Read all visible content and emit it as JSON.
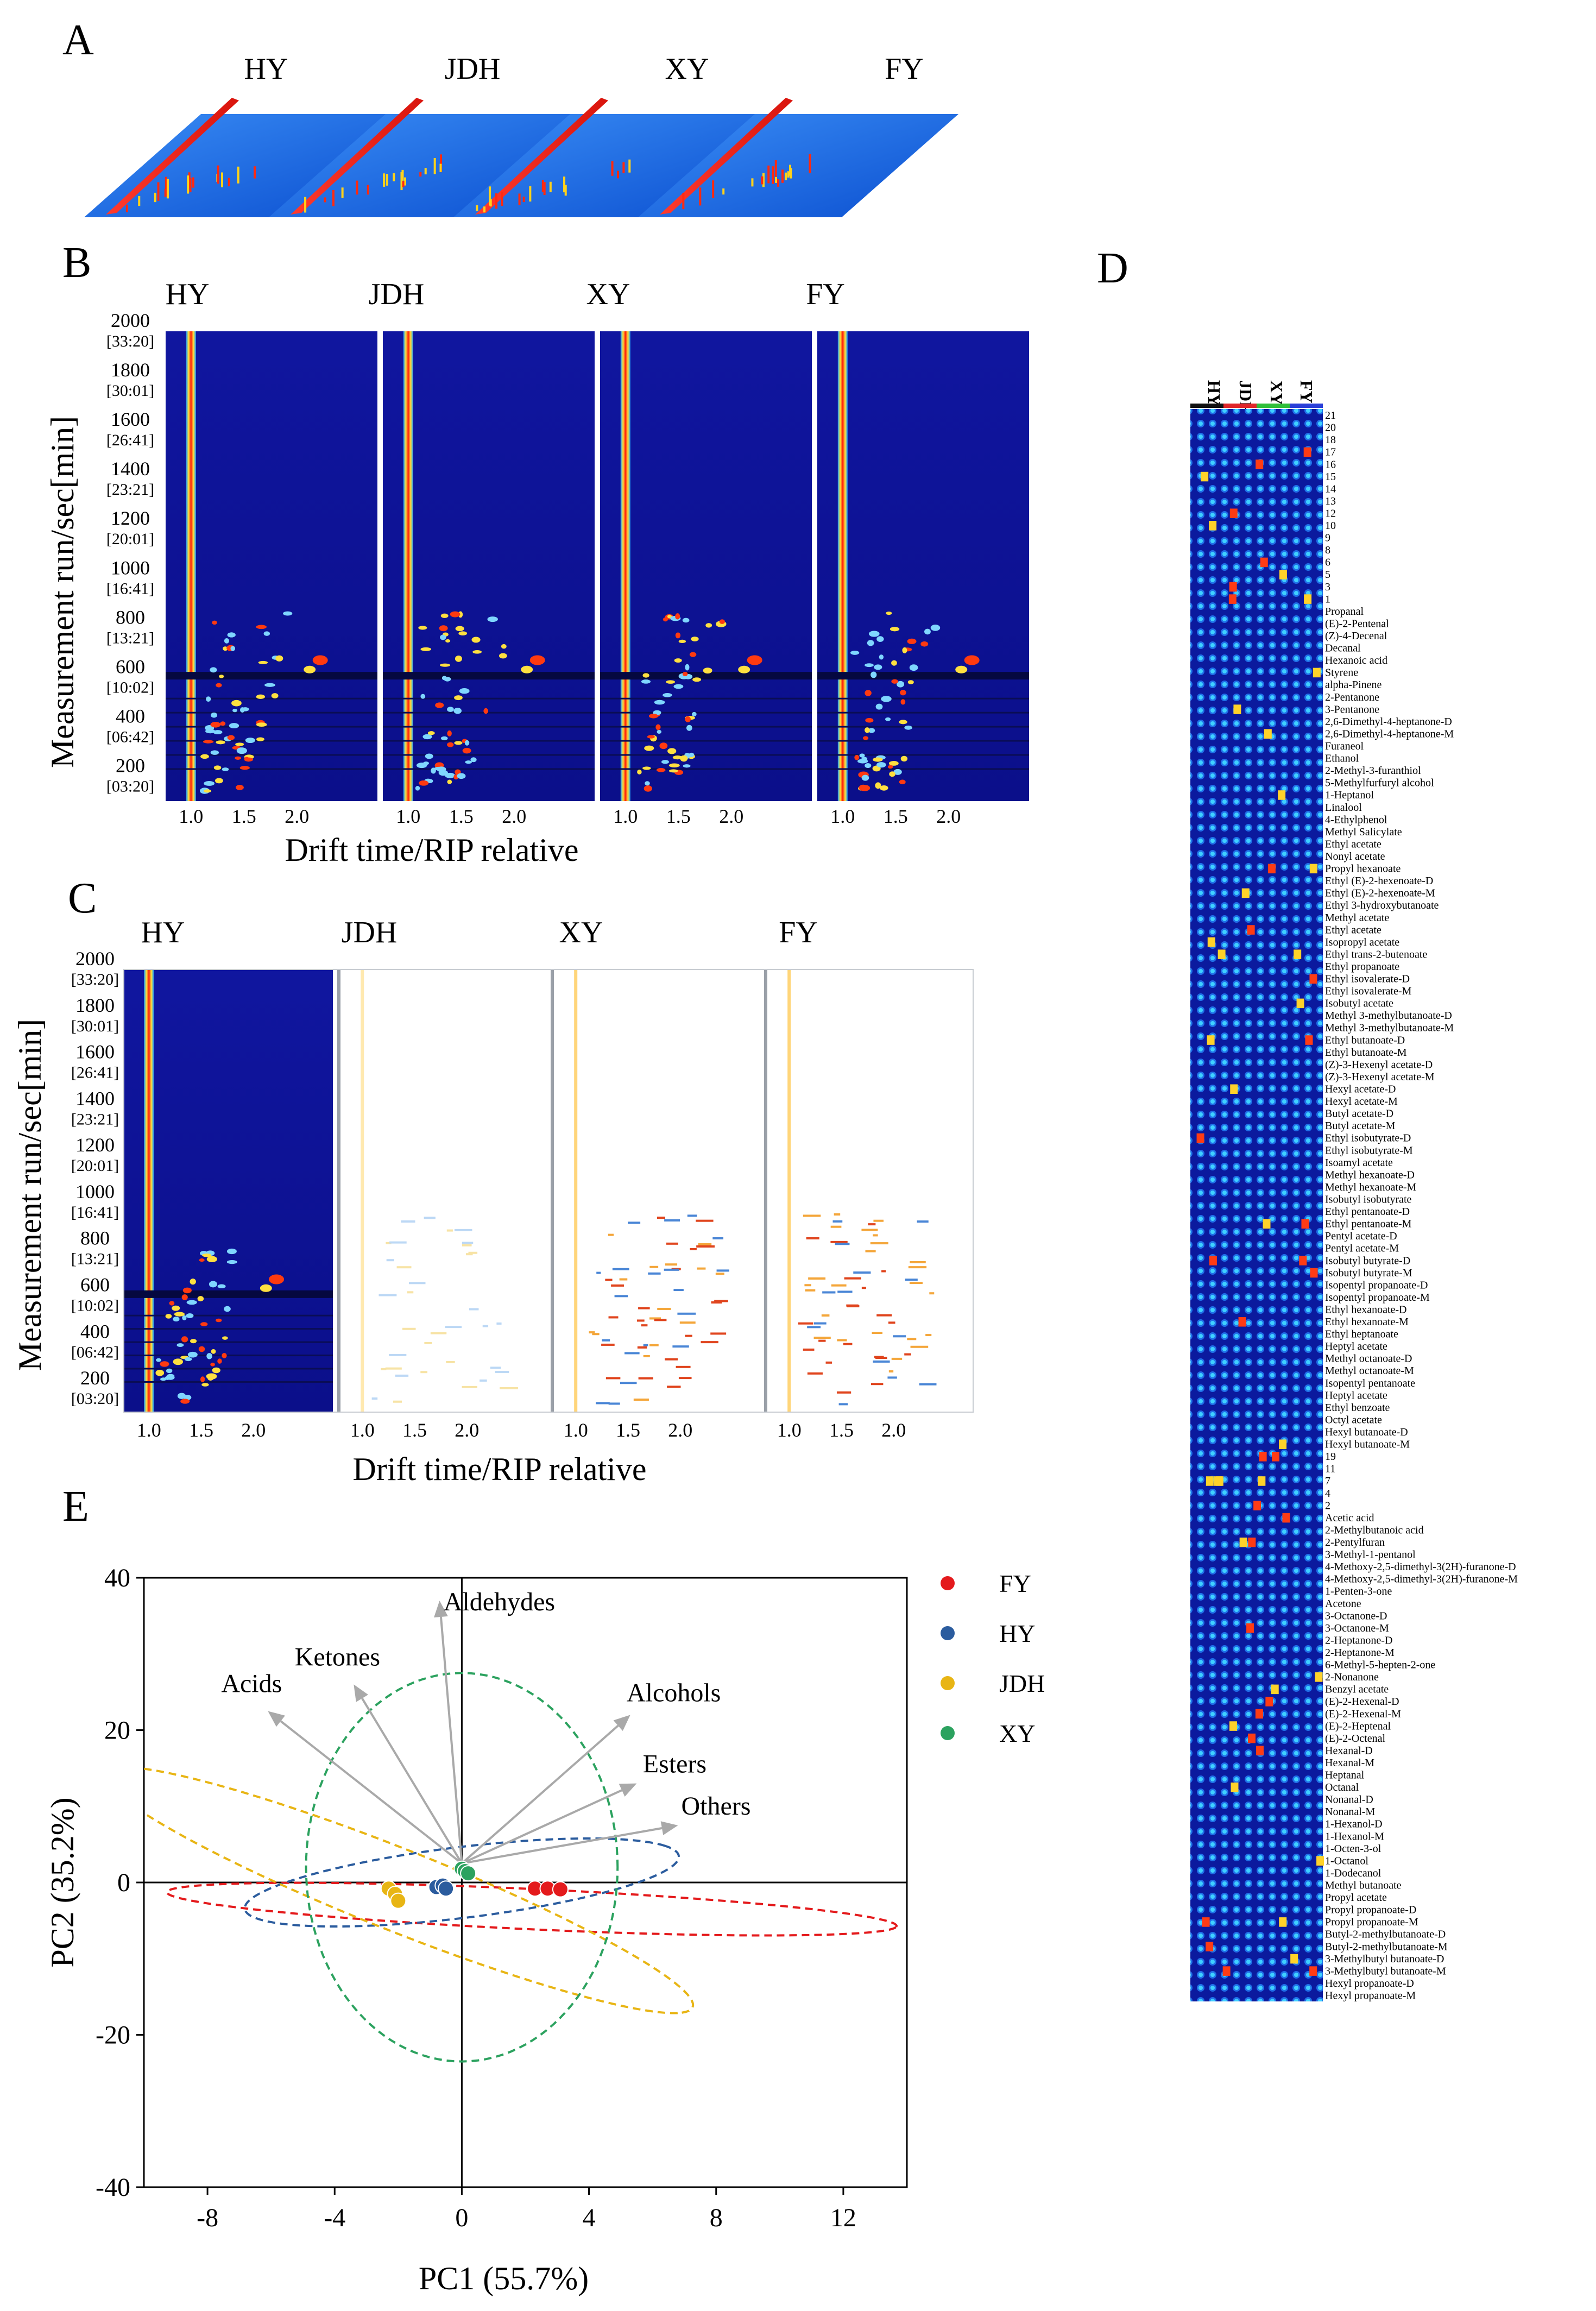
{
  "figure": {
    "panels": [
      "A",
      "B",
      "C",
      "D",
      "E"
    ],
    "groups": [
      "HY",
      "JDH",
      "XY",
      "FY"
    ],
    "drift_axis_title": "Drift time/RIP relative",
    "run_axis_title": "Measurement run/sec[min]",
    "run_ticks": [
      {
        "v": 2000,
        "l1": "2000",
        "l2": "[33:20]"
      },
      {
        "v": 1800,
        "l1": "1800",
        "l2": "[30:01]"
      },
      {
        "v": 1600,
        "l1": "1600",
        "l2": "[26:41]"
      },
      {
        "v": 1400,
        "l1": "1400",
        "l2": "[23:21]"
      },
      {
        "v": 1200,
        "l1": "1200",
        "l2": "[20:01]"
      },
      {
        "v": 1000,
        "l1": "1000",
        "l2": "[16:41]"
      },
      {
        "v": 800,
        "l1": "800",
        "l2": "[13:21]"
      },
      {
        "v": 600,
        "l1": "600",
        "l2": "[10:02]"
      },
      {
        "v": 400,
        "l1": "400",
        "l2": "[06:42]"
      },
      {
        "v": 200,
        "l1": "200",
        "l2": "[03:20]"
      }
    ],
    "drift_ticks": [
      "1.0",
      "1.5",
      "2.0"
    ]
  },
  "heatmap": {
    "group_colors": [
      "#111111",
      "#e0262a",
      "#2fbf3a",
      "#2a3fd8"
    ],
    "compounds": [
      "21",
      "20",
      "18",
      "17",
      "16",
      "15",
      "14",
      "13",
      "12",
      "10",
      "9",
      "8",
      "6",
      "5",
      "3",
      "1",
      "Propanal",
      "(E)-2-Pentenal",
      "(Z)-4-Decenal",
      "Decanal",
      "Hexanoic acid",
      "Styrene",
      "alpha-Pinene",
      "2-Pentanone",
      "3-Pentanone",
      "2,6-Dimethyl-4-heptanone-D",
      "2,6-Dimethyl-4-heptanone-M",
      "Furaneol",
      "Ethanol",
      "2-Methyl-3-furanthiol",
      "5-Methylfurfuryl alcohol",
      "1-Heptanol",
      "Linalool",
      "4-Ethylphenol",
      "Methyl Salicylate",
      "Ethyl acetate",
      "Nonyl acetate",
      "Propyl hexanoate",
      "Ethyl (E)-2-hexenoate-D",
      "Ethyl (E)-2-hexenoate-M",
      "Ethyl 3-hydroxybutanoate",
      "Methyl acetate",
      "Ethyl acetate",
      "Isopropyl acetate",
      "Ethyl trans-2-butenoate",
      "Ethyl propanoate",
      "Ethyl isovalerate-D",
      "Ethyl isovalerate-M",
      "Isobutyl acetate",
      "Methyl 3-methylbutanoate-D",
      "Methyl 3-methylbutanoate-M",
      "Ethyl butanoate-D",
      "Ethyl butanoate-M",
      "(Z)-3-Hexenyl acetate-D",
      "(Z)-3-Hexenyl acetate-M",
      "Hexyl acetate-D",
      "Hexyl acetate-M",
      "Butyl acetate-D",
      "Butyl acetate-M",
      "Ethyl isobutyrate-D",
      "Ethyl isobutyrate-M",
      "Isoamyl acetate",
      "Methyl hexanoate-D",
      "Methyl hexanoate-M",
      "Isobutyl isobutyrate",
      "Ethyl pentanoate-D",
      "Ethyl pentanoate-M",
      "Pentyl acetate-D",
      "Pentyl acetate-M",
      "Isobutyl butyrate-D",
      "Isobutyl butyrate-M",
      "Isopentyl propanoate-D",
      "Isopentyl propanoate-M",
      "Ethyl hexanoate-D",
      "Ethyl hexanoate-M",
      "Ethyl heptanoate",
      "Heptyl acetate",
      "Methyl octanoate-D",
      "Methyl octanoate-M",
      "Isopentyl pentanoate",
      "Heptyl acetate",
      "Ethyl benzoate",
      "Octyl acetate",
      "Hexyl butanoate-D",
      "Hexyl butanoate-M",
      "19",
      "11",
      "7",
      "4",
      "2",
      "Acetic acid",
      "2-Methylbutanoic acid",
      "2-Pentylfuran",
      "3-Methyl-1-pentanol",
      "4-Methoxy-2,5-dimethyl-3(2H)-furanone-D",
      "4-Methoxy-2,5-dimethyl-3(2H)-furanone-M",
      "1-Penten-3-one",
      "Acetone",
      "3-Octanone-D",
      "3-Octanone-M",
      "2-Heptanone-D",
      "2-Heptanone-M",
      "6-Methyl-5-hepten-2-one",
      "2-Nonanone",
      "Benzyl acetate",
      "(E)-2-Hexenal-D",
      "(E)-2-Hexenal-M",
      "(E)-2-Heptenal",
      "(E)-2-Octenal",
      "Hexanal-D",
      "Hexanal-M",
      "Heptanal",
      "Octanal",
      "Nonanal-D",
      "Nonanal-M",
      "1-Hexanol-D",
      "1-Hexanol-M",
      "1-Octen-3-ol",
      "1-Octanol",
      "1-Dodecanol",
      "Methyl butanoate",
      "Propyl acetate",
      "Propyl propanoate-D",
      "Propyl propanoate-M",
      "Butyl-2-methylbutanoate-D",
      "Butyl-2-methylbutanoate-M",
      "3-Methylbutyl butanoate-D",
      "3-Methylbutyl butanoate-M",
      "Hexyl propanoate-D",
      "Hexyl propanoate-M"
    ]
  },
  "chart_data": {
    "type": "scatter",
    "title": "",
    "xlabel": "PC1 (55.7%)",
    "ylabel": "PC2 (35.2%)",
    "xlim": [
      -10,
      14
    ],
    "ylim": [
      -40,
      40
    ],
    "xticks": [
      -8,
      -4,
      0,
      4,
      8,
      12
    ],
    "yticks": [
      40,
      20,
      0,
      -20,
      -40
    ],
    "series": [
      {
        "name": "FY",
        "color": "#e41a1c",
        "points": [
          [
            2.3,
            -0.8
          ],
          [
            2.7,
            -0.8
          ],
          [
            3.1,
            -0.9
          ]
        ],
        "ellipse": {
          "cx": 2.2,
          "cy": -3.5,
          "rx": 11.7,
          "ry": 2.6,
          "angle_deg": -11.5
        }
      },
      {
        "name": "HY",
        "color": "#2b5c9e",
        "points": [
          [
            -0.8,
            -0.6
          ],
          [
            -0.6,
            -0.4
          ],
          [
            -0.5,
            -0.8
          ]
        ],
        "ellipse": {
          "cx": 0.0,
          "cy": 0.0,
          "rx": 8.0,
          "ry": 4.0,
          "angle_deg": 37
        }
      },
      {
        "name": "JDH",
        "color": "#e8b514",
        "points": [
          [
            -2.3,
            -0.8
          ],
          [
            -2.1,
            -1.5
          ],
          [
            -2.0,
            -2.4
          ]
        ],
        "ellipse": {
          "cx": -2.0,
          "cy": -1.0,
          "rx": 18.4,
          "ry": 2.9,
          "angle_deg": -61
        }
      },
      {
        "name": "XY",
        "color": "#2ca25f",
        "points": [
          [
            0.0,
            1.8
          ],
          [
            0.1,
            1.5
          ],
          [
            0.2,
            1.2
          ]
        ],
        "ellipse": {
          "cx": 0.0,
          "cy": 2.0,
          "rx": 4.9,
          "ry": 25.5,
          "angle_deg": 0
        }
      }
    ],
    "loadings": [
      {
        "label": "Aldehydes",
        "x": -0.7,
        "y": 37.0
      },
      {
        "label": "Ketones",
        "x": -3.4,
        "y": 26.0
      },
      {
        "label": "Acids",
        "x": -6.1,
        "y": 22.5
      },
      {
        "label": "Alcohols",
        "x": 5.3,
        "y": 22.0
      },
      {
        "label": "Esters",
        "x": 5.5,
        "y": 13.0
      },
      {
        "label": "Others",
        "x": 6.8,
        "y": 7.5
      }
    ]
  }
}
